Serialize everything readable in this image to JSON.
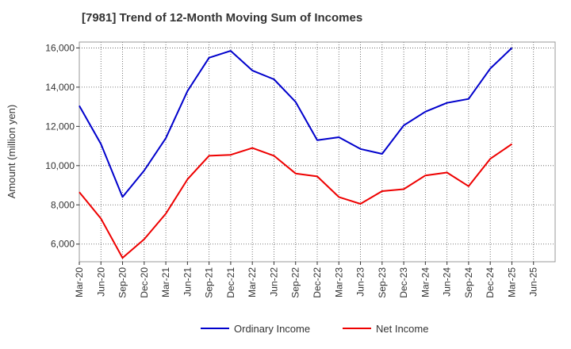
{
  "chart_data": {
    "type": "line",
    "title": "[7981]  Trend of 12-Month Moving Sum of Incomes",
    "xlabel": "",
    "ylabel": "Amount (million yen)",
    "ylim": [
      5100,
      16300
    ],
    "yticks": [
      6000,
      8000,
      10000,
      12000,
      14000,
      16000
    ],
    "ytick_labels": [
      "6,000",
      "8,000",
      "10,000",
      "12,000",
      "14,000",
      "16,000"
    ],
    "categories": [
      "Mar-20",
      "Jun-20",
      "Sep-20",
      "Dec-20",
      "Mar-21",
      "Jun-21",
      "Sep-21",
      "Dec-21",
      "Mar-22",
      "Jun-22",
      "Sep-22",
      "Dec-22",
      "Mar-23",
      "Jun-23",
      "Sep-23",
      "Dec-23",
      "Mar-24",
      "Jun-24",
      "Sep-24",
      "Dec-24",
      "Mar-25",
      "Jun-25"
    ],
    "grid": true,
    "legend_position": "bottom-center",
    "series": [
      {
        "name": "Ordinary Income",
        "color": "#0000cc",
        "values": [
          13050,
          11100,
          8400,
          9750,
          11400,
          13800,
          15500,
          15850,
          14850,
          14400,
          13250,
          11300,
          11450,
          10850,
          10600,
          12050,
          12750,
          13200,
          13400,
          14950,
          16000,
          null
        ]
      },
      {
        "name": "Net Income",
        "color": "#ee0000",
        "values": [
          8650,
          7300,
          5300,
          6250,
          7550,
          9300,
          10500,
          10550,
          10900,
          10500,
          9600,
          9450,
          8400,
          8050,
          8700,
          8800,
          9500,
          9650,
          8950,
          10350,
          11100,
          null
        ]
      }
    ]
  }
}
